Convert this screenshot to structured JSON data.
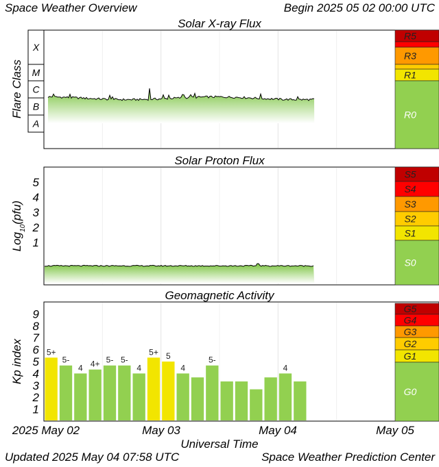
{
  "header": {
    "left": "Space Weather Overview",
    "begin_label": "Begin",
    "begin_value": "2025 05 02 00:00 UTC"
  },
  "footer": {
    "updated_label": "Updated",
    "updated_value": "2025 May 04 07:58 UTC",
    "center": "Space Weather Prediction Center"
  },
  "x_axis": {
    "label": "Universal Time",
    "ticks": [
      "2025 May 02",
      "May 03",
      "May 04",
      "May 05"
    ]
  },
  "colors": {
    "green": "#92d050",
    "yellow": "#f2e500",
    "gold": "#ffcc00",
    "orange": "#ff9900",
    "red": "#ff0000",
    "dark_red": "#c00000"
  },
  "chart_data": [
    {
      "type": "area",
      "title": "Solar X-ray Flux",
      "ylabel": "Flare Class",
      "classes": [
        "X",
        "M",
        "C",
        "B",
        "A"
      ],
      "scale_labels": [
        "R5",
        "R3",
        "R1",
        "R0"
      ],
      "x_range_days": [
        0,
        3
      ],
      "data_coverage_days": [
        0,
        2.31
      ],
      "level_class": "B"
    },
    {
      "type": "area",
      "title": "Solar Proton Flux",
      "ylabel": "Log10(pfu)",
      "yticks": [
        "5",
        "4",
        "3",
        "2",
        "1"
      ],
      "scale_labels": [
        "S5",
        "S4",
        "S3",
        "S2",
        "S1",
        "S0"
      ],
      "data_coverage_days": [
        0,
        2.31
      ],
      "level_log10_pfu": -0.35
    },
    {
      "type": "bar",
      "title": "Geomagnetic Activity",
      "ylabel": "Kp index",
      "yticks": [
        "9",
        "8",
        "7",
        "6",
        "5",
        "4",
        "3",
        "2",
        "1"
      ],
      "ylim": [
        0,
        10
      ],
      "interval_hours": 3,
      "values": [
        5.33,
        4.67,
        4.0,
        4.33,
        4.67,
        4.67,
        4.0,
        5.33,
        5.0,
        4.0,
        3.67,
        4.67,
        3.33,
        3.33,
        2.67,
        3.67,
        4.0,
        3.33
      ],
      "labels": [
        "5+",
        "5-",
        "4",
        "4+",
        "5-",
        "5-",
        "4",
        "5+",
        "5",
        "4",
        "",
        "5-",
        "",
        "",
        "",
        "",
        "4",
        ""
      ],
      "scale_labels": [
        "G5",
        "G4",
        "G3",
        "G2",
        "G1",
        "G0"
      ]
    }
  ]
}
